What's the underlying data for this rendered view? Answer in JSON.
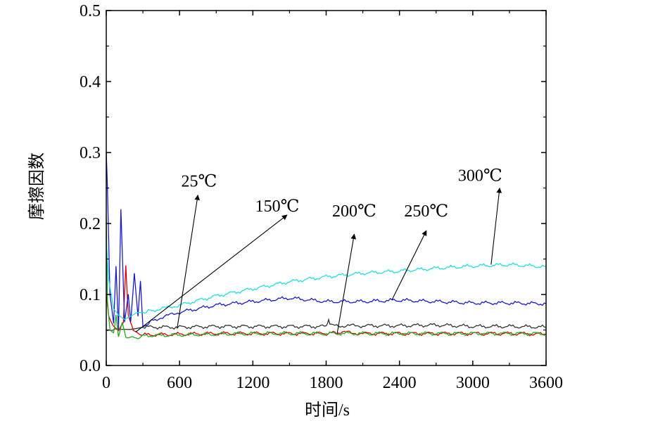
{
  "chart_data": {
    "type": "line",
    "xlabel": "时间/s",
    "ylabel": "摩擦因数",
    "xlim": [
      0,
      3600
    ],
    "ylim": [
      0,
      0.5
    ],
    "xticks": [
      "0",
      "600",
      "1200",
      "1800",
      "2400",
      "3000",
      "3600"
    ],
    "yticks": [
      "0.0",
      "0.1",
      "0.2",
      "0.3",
      "0.4",
      "0.5"
    ],
    "grid": false,
    "series": [
      {
        "name": "25℃",
        "color": "#333333",
        "x": [
          0,
          20,
          60,
          100,
          150,
          200,
          250,
          300,
          600,
          900,
          1200,
          1500,
          1800,
          1820,
          1840,
          2100,
          2400,
          2700,
          3000,
          3300,
          3600
        ],
        "y": [
          0.05,
          0.049,
          0.05,
          0.051,
          0.052,
          0.052,
          0.053,
          0.054,
          0.054,
          0.055,
          0.055,
          0.055,
          0.055,
          0.062,
          0.056,
          0.056,
          0.056,
          0.057,
          0.055,
          0.055,
          0.054
        ]
      },
      {
        "name": "150℃",
        "color": "#dd0000",
        "x": [
          0,
          20,
          60,
          100,
          140,
          160,
          180,
          200,
          220,
          260,
          300,
          600,
          900,
          1200,
          1500,
          1800,
          1900,
          2100,
          2400,
          2700,
          3000,
          3300,
          3600
        ],
        "y": [
          0.1,
          0.07,
          0.055,
          0.05,
          0.06,
          0.14,
          0.07,
          0.06,
          0.05,
          0.045,
          0.043,
          0.044,
          0.045,
          0.045,
          0.045,
          0.045,
          0.047,
          0.045,
          0.045,
          0.045,
          0.045,
          0.045,
          0.044
        ]
      },
      {
        "name": "200℃",
        "color": "#22aa22",
        "x": [
          0,
          10,
          30,
          60,
          80,
          100,
          130,
          160,
          200,
          260,
          300,
          600,
          900,
          1200,
          1500,
          1800,
          2100,
          2400,
          2700,
          3000,
          3300,
          3600
        ],
        "y": [
          0.21,
          0.09,
          0.05,
          0.045,
          0.07,
          0.04,
          0.06,
          0.04,
          0.04,
          0.038,
          0.042,
          0.043,
          0.044,
          0.045,
          0.045,
          0.045,
          0.045,
          0.045,
          0.045,
          0.045,
          0.045,
          0.045
        ]
      },
      {
        "name": "250℃",
        "color": "#1a1acc",
        "x": [
          0,
          10,
          30,
          60,
          80,
          100,
          120,
          150,
          180,
          200,
          230,
          260,
          280,
          300,
          400,
          600,
          900,
          1200,
          1500,
          1800,
          2100,
          2400,
          2700,
          3000,
          3300,
          3600
        ],
        "y": [
          0.3,
          0.25,
          0.1,
          0.06,
          0.14,
          0.05,
          0.22,
          0.06,
          0.1,
          0.06,
          0.13,
          0.07,
          0.12,
          0.055,
          0.065,
          0.075,
          0.085,
          0.09,
          0.095,
          0.09,
          0.09,
          0.092,
          0.09,
          0.088,
          0.088,
          0.087
        ]
      },
      {
        "name": "300℃",
        "color": "#22dddd",
        "x": [
          0,
          20,
          60,
          100,
          150,
          200,
          250,
          300,
          400,
          600,
          900,
          1200,
          1500,
          1800,
          2100,
          2400,
          2700,
          3000,
          3300,
          3600
        ],
        "y": [
          0.18,
          0.12,
          0.08,
          0.07,
          0.065,
          0.07,
          0.075,
          0.075,
          0.078,
          0.085,
          0.098,
          0.108,
          0.118,
          0.125,
          0.13,
          0.133,
          0.137,
          0.14,
          0.142,
          0.139
        ]
      }
    ],
    "annotations": [
      {
        "text": "25℃",
        "x": 760,
        "y": 0.252,
        "arrow_from": [
          580,
          0.052
        ],
        "arrow_to": [
          750,
          0.24
        ]
      },
      {
        "text": "150℃",
        "x": 1400,
        "y": 0.217,
        "arrow_from": [
          240,
          0.047
        ],
        "arrow_to": [
          1480,
          0.212
        ]
      },
      {
        "text": "200℃",
        "x": 2030,
        "y": 0.21,
        "arrow_from": [
          1890,
          0.045
        ],
        "arrow_to": [
          2030,
          0.185
        ]
      },
      {
        "text": "250℃",
        "x": 2620,
        "y": 0.21,
        "arrow_from": [
          2340,
          0.093
        ],
        "arrow_to": [
          2620,
          0.19
        ]
      },
      {
        "text": "300℃",
        "x": 3060,
        "y": 0.26,
        "arrow_from": [
          3150,
          0.142
        ],
        "arrow_to": [
          3220,
          0.25
        ]
      }
    ]
  }
}
